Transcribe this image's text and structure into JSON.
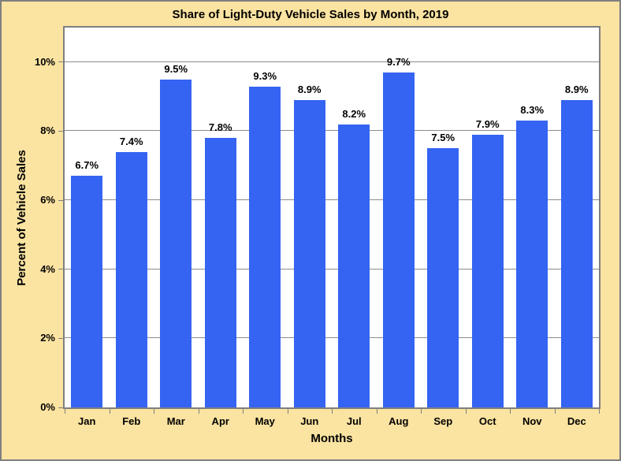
{
  "chart_data": {
    "type": "bar",
    "title": "Share of Light-Duty Vehicle Sales by Month, 2019",
    "xlabel": "Months",
    "ylabel": "Percent of Vehicle Sales",
    "categories": [
      "Jan",
      "Feb",
      "Mar",
      "Apr",
      "May",
      "Jun",
      "Jul",
      "Aug",
      "Sep",
      "Oct",
      "Nov",
      "Dec"
    ],
    "values": [
      6.7,
      7.4,
      9.5,
      7.8,
      9.3,
      8.9,
      8.2,
      9.7,
      7.5,
      7.9,
      8.3,
      8.9
    ],
    "data_labels": [
      "6.7%",
      "7.4%",
      "9.5%",
      "7.8%",
      "9.3%",
      "8.9%",
      "8.2%",
      "9.7%",
      "7.5%",
      "7.9%",
      "8.3%",
      "8.9%"
    ],
    "yticks": [
      0,
      2,
      4,
      6,
      8,
      10
    ],
    "ytick_labels": [
      "0%",
      "2%",
      "4%",
      "6%",
      "8%",
      "10%"
    ],
    "ylim": [
      0,
      11
    ],
    "grid": true,
    "legend": false,
    "colors": {
      "bar": "#3564F2",
      "background": "#FBE3A1",
      "plot_background": "#FFFFFF",
      "border": "#7F7F7F",
      "gridline": "#8C8C8C",
      "text": "#000000"
    }
  }
}
